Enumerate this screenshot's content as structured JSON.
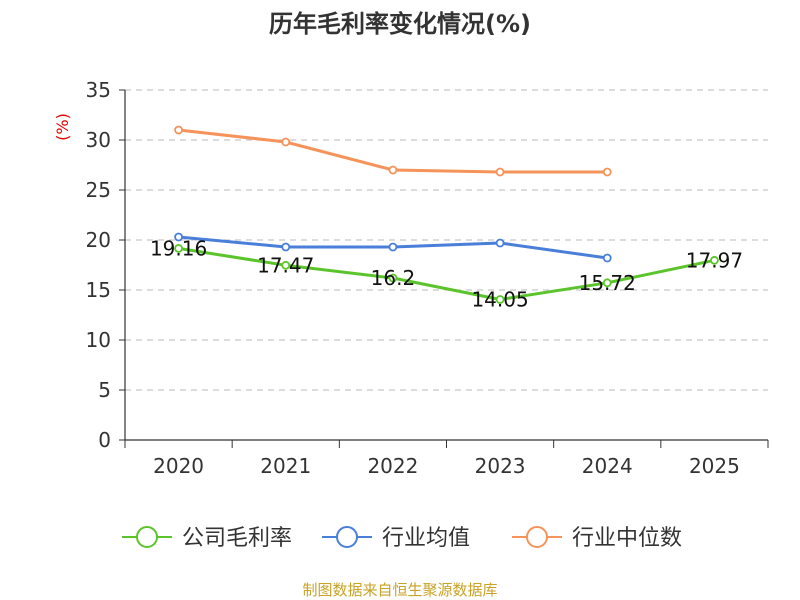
{
  "chart_data": {
    "type": "line",
    "title": "历年毛利率变化情况(%)",
    "ylabel": "(%)",
    "xlabel": "",
    "categories": [
      "2020",
      "2021",
      "2022",
      "2023",
      "2024",
      "2025"
    ],
    "ylim": [
      0,
      35
    ],
    "yticks": [
      0,
      5,
      10,
      15,
      20,
      25,
      30,
      35
    ],
    "grid": true,
    "legend_position": "bottom",
    "series": [
      {
        "name": "公司毛利率",
        "color": "#5cc42b",
        "values": [
          19.16,
          17.47,
          16.2,
          14.05,
          15.72,
          17.97
        ],
        "labels": [
          "19.16",
          "17.47",
          "16.2",
          "14.05",
          "15.72",
          "17.97"
        ]
      },
      {
        "name": "行业均值",
        "color": "#4a7fd9",
        "values": [
          20.3,
          19.3,
          19.3,
          19.7,
          18.2,
          null
        ]
      },
      {
        "name": "行业中位数",
        "color": "#f5935a",
        "values": [
          31.0,
          29.8,
          27.0,
          26.8,
          26.8,
          null
        ]
      }
    ],
    "source": "制图数据来自恒生聚源数据库"
  }
}
